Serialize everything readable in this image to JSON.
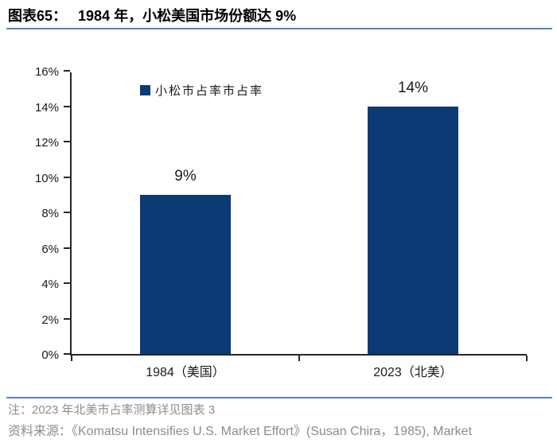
{
  "header": {
    "title_label": "图表65：",
    "title_text": "1984 年，小松美国市场份额达 9%"
  },
  "chart_data": {
    "type": "bar",
    "title": "1984 年，小松美国市场份额达 9%",
    "categories": [
      "1984（美国）",
      "2023（北美）"
    ],
    "values": [
      9,
      14
    ],
    "value_labels": [
      "9%",
      "14%"
    ],
    "series": [
      {
        "name": "小松市占率市占率",
        "values": [
          9,
          14
        ]
      }
    ],
    "xlabel": "",
    "ylabel": "",
    "ylim": [
      0,
      16
    ],
    "ytick_values": [
      0,
      2,
      4,
      6,
      8,
      10,
      12,
      14,
      16
    ],
    "ytick_labels": [
      "0%",
      "2%",
      "4%",
      "6%",
      "8%",
      "10%",
      "12%",
      "14%",
      "16%"
    ],
    "grid": false,
    "legend_position": "inside-top-left",
    "bar_color": "#0b3a74"
  },
  "legend": {
    "label": "小松市占率市占率",
    "swatch_icon": "square-swatch-icon"
  },
  "footer": {
    "note": "注：2023 年北美市占率测算详见图表 3",
    "source": "资料来源：《Komatsu Intensifies U.S. Market Effort》(Susan Chira，1985), Market"
  },
  "colors": {
    "bar": "#0b3a74",
    "accent_line": "#5b82b4",
    "axis": "#262626",
    "note_text": "#8c8c8c",
    "label_text": "#1a1a1a"
  }
}
